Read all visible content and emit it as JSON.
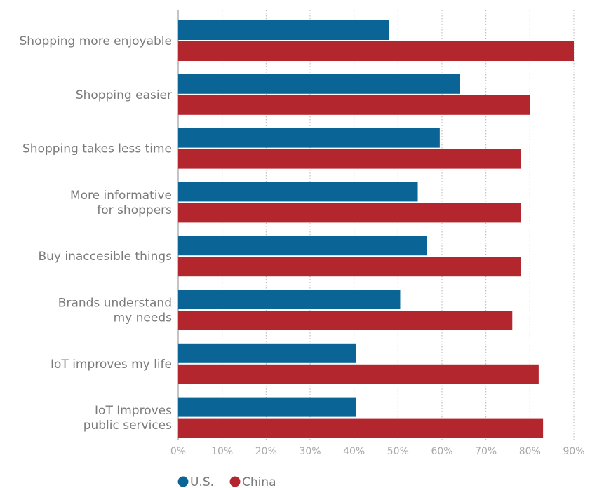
{
  "chart_data": {
    "type": "bar",
    "orientation": "horizontal",
    "categories": [
      [
        "Shopping more enjoyable"
      ],
      [
        "Shopping easier"
      ],
      [
        "Shopping takes less time"
      ],
      [
        "More informative",
        "for shoppers"
      ],
      [
        "Buy inaccesible things"
      ],
      [
        "Brands understand",
        "my needs"
      ],
      [
        "IoT improves my life"
      ],
      [
        "IoT Improves",
        "public services"
      ]
    ],
    "series": [
      {
        "name": "U.S.",
        "color": "#0a6596",
        "values": [
          48,
          64,
          59.5,
          54.5,
          56.5,
          50.5,
          40.5,
          40.5
        ]
      },
      {
        "name": "China",
        "color": "#b3262d",
        "values": [
          90,
          80,
          78,
          78,
          78,
          76,
          82,
          83
        ]
      }
    ],
    "xlim": [
      0,
      90
    ],
    "xticks": [
      0,
      10,
      20,
      30,
      40,
      50,
      60,
      70,
      80,
      90
    ],
    "xtick_labels": [
      "0%",
      "10%",
      "20%",
      "30%",
      "40%",
      "50%",
      "60%",
      "70%",
      "80%",
      "90%"
    ],
    "grid": "vertical dotted",
    "legend_position": "bottom-left",
    "title": "",
    "xlabel": "",
    "ylabel": ""
  }
}
